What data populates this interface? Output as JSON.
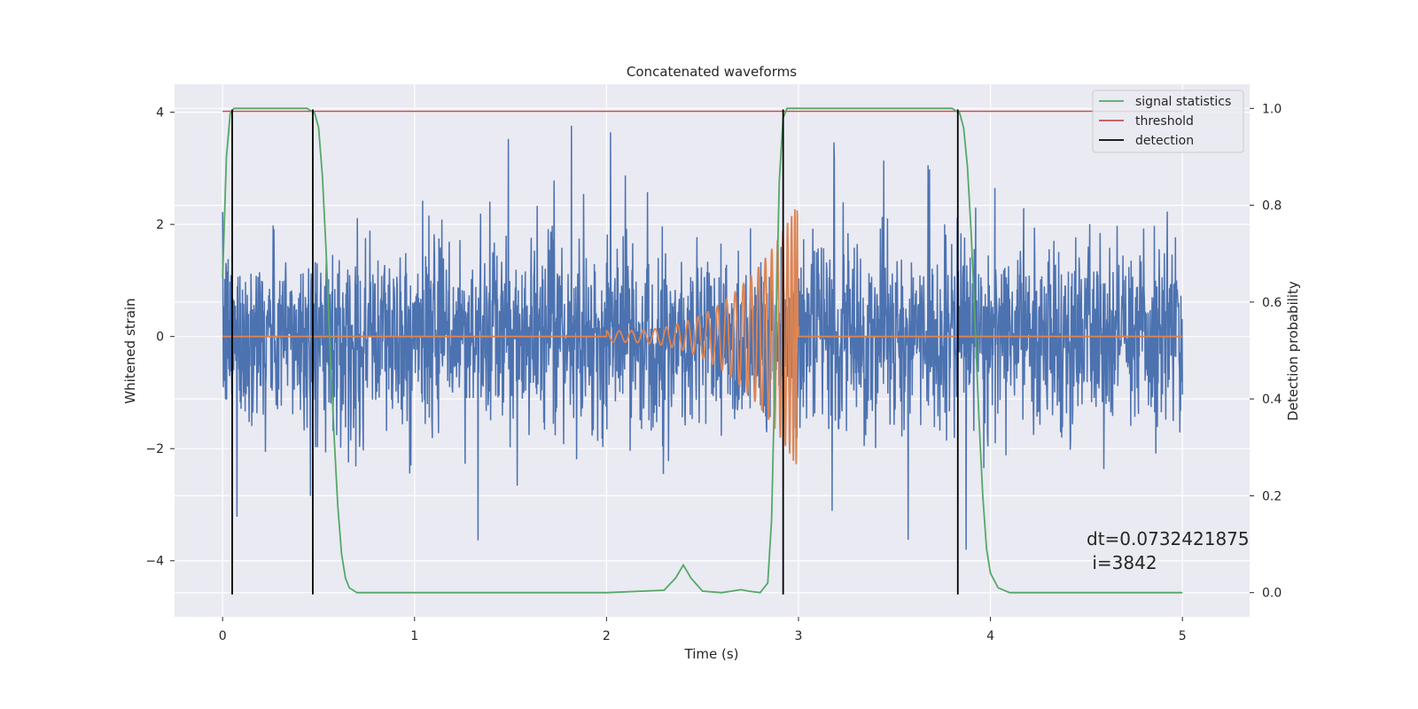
{
  "chart_data": {
    "type": "line",
    "title": "Concatenated waveforms",
    "xlabel": "Time (s)",
    "ylabel": "Whitened strain",
    "y2label": "Detection probability",
    "xlim": [
      -0.25,
      5.35
    ],
    "ylim": [
      -5.0,
      4.5
    ],
    "y2lim": [
      -0.05,
      1.05
    ],
    "xticks": [
      0,
      1,
      2,
      3,
      4,
      5
    ],
    "yticks": [
      -4,
      -2,
      0,
      2,
      4
    ],
    "y2ticks": [
      0.0,
      0.2,
      0.4,
      0.6,
      0.8,
      1.0
    ],
    "xtick_labels": [
      "0",
      "1",
      "2",
      "3",
      "4",
      "5"
    ],
    "ytick_labels": [
      "−4",
      "−2",
      "0",
      "2",
      "4"
    ],
    "y2tick_labels": [
      "0.0",
      "0.2",
      "0.4",
      "0.6",
      "0.8",
      "1.0"
    ],
    "grid": true,
    "legend_position": "top-right",
    "legend": [
      "signal statistics",
      "threshold",
      "detection"
    ],
    "colors": {
      "strain": "#4c72b0",
      "template": "#dd8452",
      "signal_statistics": "#55a868",
      "threshold": "#c44e52",
      "detection": "#000000",
      "background": "#eaeaf2",
      "grid": "#ffffff"
    },
    "series": [
      {
        "name": "signal statistics",
        "axis": "right",
        "x": [
          0.0,
          0.02,
          0.04,
          0.06,
          0.08,
          0.12,
          0.2,
          0.3,
          0.4,
          0.44,
          0.48,
          0.5,
          0.52,
          0.54,
          0.56,
          0.58,
          0.6,
          0.62,
          0.64,
          0.66,
          0.7,
          1.0,
          2.0,
          2.3,
          2.36,
          2.4,
          2.44,
          2.5,
          2.6,
          2.7,
          2.74,
          2.8,
          2.84,
          2.86,
          2.88,
          2.9,
          2.92,
          2.94,
          2.97,
          3.0,
          3.5,
          3.8,
          3.84,
          3.86,
          3.88,
          3.9,
          3.92,
          3.94,
          3.96,
          3.98,
          4.0,
          4.04,
          4.1,
          4.2,
          5.0
        ],
        "y": [
          0.65,
          0.9,
          0.99,
          1.0,
          1.0,
          1.0,
          1.0,
          1.0,
          1.0,
          1.0,
          0.99,
          0.96,
          0.86,
          0.7,
          0.5,
          0.33,
          0.18,
          0.08,
          0.03,
          0.01,
          0.0,
          0.0,
          0.0,
          0.005,
          0.03,
          0.057,
          0.03,
          0.003,
          0.0,
          0.006,
          0.003,
          0.0,
          0.02,
          0.15,
          0.5,
          0.85,
          0.98,
          1.0,
          1.0,
          1.0,
          1.0,
          1.0,
          0.99,
          0.96,
          0.88,
          0.74,
          0.55,
          0.36,
          0.2,
          0.09,
          0.04,
          0.01,
          0.0,
          0.0,
          0.0
        ]
      },
      {
        "name": "threshold",
        "axis": "right",
        "x": [
          0.0,
          5.0
        ],
        "y": [
          0.994,
          0.994
        ]
      },
      {
        "name": "detection",
        "axis": "left",
        "x": [
          0.05,
          0.47,
          2.92,
          3.83
        ],
        "y_range": [
          -4.6,
          4.05
        ]
      },
      {
        "name": "",
        "axis": "left",
        "description_free": true,
        "x_range": [
          0,
          5
        ],
        "envelope": [
          1.2,
          1.7
        ]
      },
      {
        "name": "",
        "axis": "left",
        "x_range": [
          2.0,
          3.0
        ],
        "amplitude_start": 0.1,
        "amplitude_end": 2.4
      }
    ],
    "annotations": [
      "dt=0.0732421875",
      " i=3842"
    ]
  }
}
